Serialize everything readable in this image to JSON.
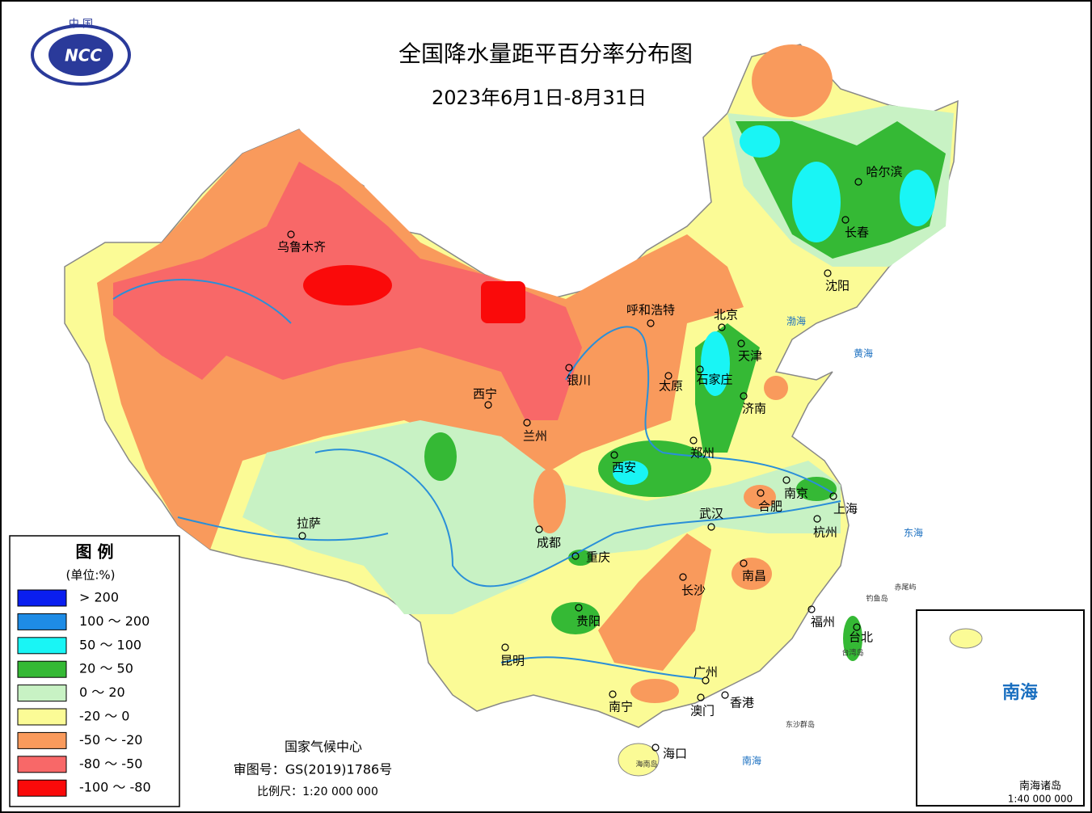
{
  "header": {
    "title": "全国降水量距平百分率分布图",
    "date": "2023年6月1日-8月31日"
  },
  "logo": {
    "top": "中 国",
    "mark": "NCC"
  },
  "legend": {
    "title": "图 例",
    "unit": "(单位:%)",
    "items": [
      {
        "label": "> 200",
        "color": "#0a1ef0"
      },
      {
        "label": "100 ～ 200",
        "color": "#1e8ce6"
      },
      {
        "label": "50 ～ 100",
        "color": "#19f5f5"
      },
      {
        "label": "20 ～ 50",
        "color": "#35b935"
      },
      {
        "label": "0 ～ 20",
        "color": "#c8f2c4"
      },
      {
        "label": "-20 ～ 0",
        "color": "#fbfb96"
      },
      {
        "label": "-50 ～ -20",
        "color": "#f99a5c"
      },
      {
        "label": "-80 ～ -50",
        "color": "#f86868"
      },
      {
        "label": "-100 ～ -80",
        "color": "#fa0a0a"
      }
    ]
  },
  "cities": [
    "乌鲁木齐",
    "呼和浩特",
    "北京",
    "天津",
    "石家庄",
    "太原",
    "银川",
    "西宁",
    "兰州",
    "济南",
    "郑州",
    "西安",
    "南京",
    "合肥",
    "上海",
    "武汉",
    "杭州",
    "成都",
    "重庆",
    "拉萨",
    "长沙",
    "南昌",
    "贵阳",
    "福州",
    "台北",
    "昆明",
    "广州",
    "南宁",
    "澳门",
    "香港",
    "海口",
    "哈尔滨",
    "长春",
    "沈阳"
  ],
  "seas": [
    "渤海",
    "黄海",
    "东海",
    "南海",
    "钓鱼岛",
    "赤尾屿",
    "台湾岛",
    "海南岛",
    "东沙群岛"
  ],
  "footer": {
    "agency": "国家气候中心",
    "approval": "审图号：GS(2019)1786号",
    "scale": "比例尺：1:20 000 000"
  },
  "inset": {
    "sea": "南海",
    "title": "南海诸岛",
    "scale": "1:40 000 000"
  }
}
